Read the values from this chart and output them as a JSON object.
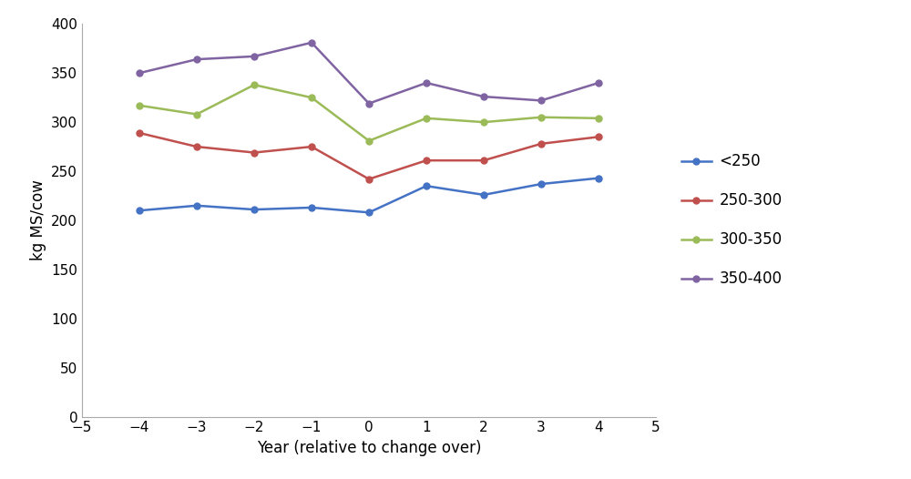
{
  "x": [
    -4,
    -3,
    -2,
    -1,
    0,
    1,
    2,
    3,
    4
  ],
  "series": {
    "<250": [
      210,
      215,
      211,
      213,
      208,
      235,
      226,
      237,
      243
    ],
    "250-300": [
      289,
      275,
      269,
      275,
      242,
      261,
      261,
      278,
      285
    ],
    "300-350": [
      317,
      308,
      338,
      325,
      281,
      304,
      300,
      305,
      304
    ],
    "350-400": [
      350,
      364,
      367,
      381,
      319,
      340,
      326,
      322,
      340
    ]
  },
  "colors": {
    "<250": "#4472C4",
    "250-300": "#C0504D",
    "300-350": "#9BBB59",
    "350-400": "#8064A2"
  },
  "xlabel": "Year (relative to change over)",
  "ylabel": "kg MS/cow",
  "xlim": [
    -5,
    5
  ],
  "ylim": [
    0,
    400
  ],
  "yticks": [
    0,
    50,
    100,
    150,
    200,
    250,
    300,
    350,
    400
  ],
  "xticks": [
    -5,
    -4,
    -3,
    -2,
    -1,
    0,
    1,
    2,
    3,
    4,
    5
  ],
  "legend_labels": [
    "<250",
    "250-300",
    "300-350",
    "350-400"
  ],
  "marker": "o",
  "markersize": 5,
  "linewidth": 1.8,
  "xlabel_fontsize": 12,
  "ylabel_fontsize": 12,
  "tick_fontsize": 11,
  "legend_fontsize": 12
}
